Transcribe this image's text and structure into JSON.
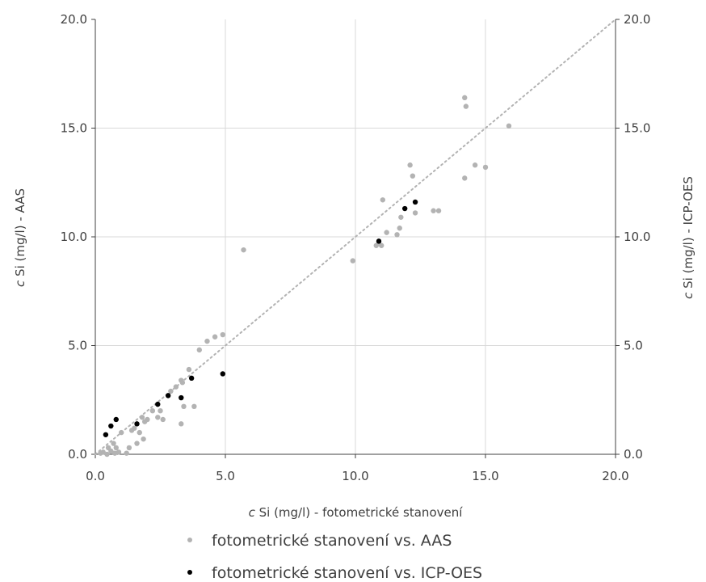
{
  "chart_data": {
    "type": "scatter",
    "title": "",
    "xlabel": {
      "var": "c",
      "rest": " Si (mg/l) - fotometrické stanovení"
    },
    "ylabel": {
      "var": "c",
      "rest": " Si (mg/l) - AAS"
    },
    "y2label": {
      "var": "c",
      "rest": " Si (mg/l) - ICP-OES"
    },
    "xlim": [
      0,
      20
    ],
    "ylim": [
      0,
      20
    ],
    "y2lim": [
      0,
      20
    ],
    "x_ticks": [
      "0.0",
      "5.0",
      "10.0",
      "15.0",
      "20.0"
    ],
    "y_ticks": [
      "0.0",
      "5.0",
      "10.0",
      "15.0",
      "20.0"
    ],
    "y2_ticks": [
      "0.0",
      "5.0",
      "10.0",
      "15.0",
      "20.0"
    ],
    "grid": true,
    "legend_position": "bottom",
    "reference_line": {
      "style": "dotted",
      "color": "#b3b3b3",
      "from": [
        0,
        0
      ],
      "to": [
        20,
        20
      ]
    },
    "series": [
      {
        "name": "fotometrické stanovení vs. AAS",
        "color": "#b3b3b3",
        "axis": "left",
        "points": [
          [
            0.2,
            0.05
          ],
          [
            0.3,
            0.1
          ],
          [
            0.45,
            0.0
          ],
          [
            0.5,
            0.3
          ],
          [
            0.6,
            0.15
          ],
          [
            0.7,
            0.5
          ],
          [
            0.75,
            0.05
          ],
          [
            0.8,
            0.3
          ],
          [
            0.9,
            0.1
          ],
          [
            1.0,
            1.0
          ],
          [
            1.2,
            0.05
          ],
          [
            1.3,
            0.3
          ],
          [
            1.4,
            1.1
          ],
          [
            1.5,
            1.2
          ],
          [
            1.6,
            0.5
          ],
          [
            1.7,
            1.0
          ],
          [
            1.8,
            1.7
          ],
          [
            1.85,
            0.7
          ],
          [
            1.9,
            1.5
          ],
          [
            2.0,
            1.6
          ],
          [
            2.2,
            2.0
          ],
          [
            2.4,
            1.7
          ],
          [
            2.5,
            2.0
          ],
          [
            2.6,
            1.6
          ],
          [
            2.9,
            2.9
          ],
          [
            3.1,
            3.1
          ],
          [
            3.3,
            3.4
          ],
          [
            3.35,
            3.3
          ],
          [
            3.3,
            1.4
          ],
          [
            3.4,
            2.2
          ],
          [
            3.8,
            2.2
          ],
          [
            3.6,
            3.9
          ],
          [
            4.0,
            4.8
          ],
          [
            4.3,
            5.2
          ],
          [
            4.6,
            5.4
          ],
          [
            4.9,
            5.5
          ],
          [
            5.7,
            9.4
          ],
          [
            9.9,
            8.9
          ],
          [
            10.8,
            9.6
          ],
          [
            10.9,
            9.7
          ],
          [
            11.0,
            9.6
          ],
          [
            11.05,
            11.7
          ],
          [
            11.2,
            10.2
          ],
          [
            11.6,
            10.1
          ],
          [
            11.7,
            10.4
          ],
          [
            11.75,
            10.9
          ],
          [
            12.1,
            13.3
          ],
          [
            12.2,
            12.8
          ],
          [
            12.3,
            11.1
          ],
          [
            13.0,
            11.2
          ],
          [
            13.2,
            11.2
          ],
          [
            14.2,
            16.4
          ],
          [
            14.25,
            16.0
          ],
          [
            14.2,
            12.7
          ],
          [
            14.6,
            13.3
          ],
          [
            15.0,
            13.2
          ],
          [
            15.9,
            15.1
          ]
        ]
      },
      {
        "name": "fotometrické stanovení vs. ICP-OES",
        "color": "#000000",
        "axis": "right",
        "points": [
          [
            0.4,
            0.9
          ],
          [
            0.6,
            1.3
          ],
          [
            0.8,
            1.6
          ],
          [
            1.6,
            1.4
          ],
          [
            2.4,
            2.3
          ],
          [
            2.8,
            2.7
          ],
          [
            3.3,
            2.6
          ],
          [
            3.7,
            3.5
          ],
          [
            4.9,
            3.7
          ],
          [
            10.9,
            9.8
          ],
          [
            11.9,
            11.3
          ],
          [
            12.3,
            11.6
          ]
        ]
      }
    ]
  }
}
